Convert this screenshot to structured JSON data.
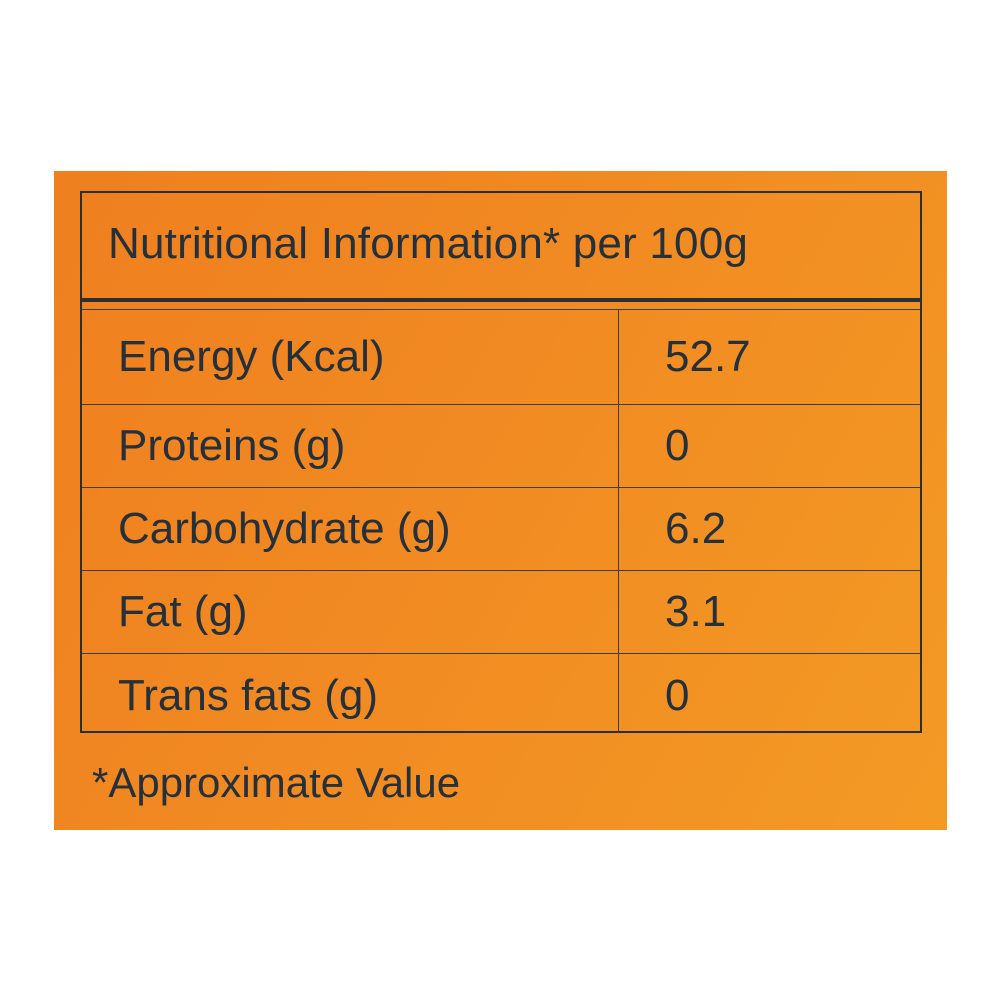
{
  "table": {
    "title": "Nutritional Information* per 100g",
    "rows": [
      {
        "label": "Energy (Kcal)",
        "value": "52.7"
      },
      {
        "label": "Proteins (g)",
        "value": "0"
      },
      {
        "label": "Carbohydrate (g)",
        "value": "6.2"
      },
      {
        "label": "Fat (g)",
        "value": "3.1"
      },
      {
        "label": "Trans fats (g)",
        "value": "0"
      }
    ]
  },
  "footnote": "*Approximate Value",
  "colors": {
    "background_start": "#ef7f1f",
    "background_end": "#f39a24",
    "text": "#25303a",
    "border": "#2a2f35"
  }
}
